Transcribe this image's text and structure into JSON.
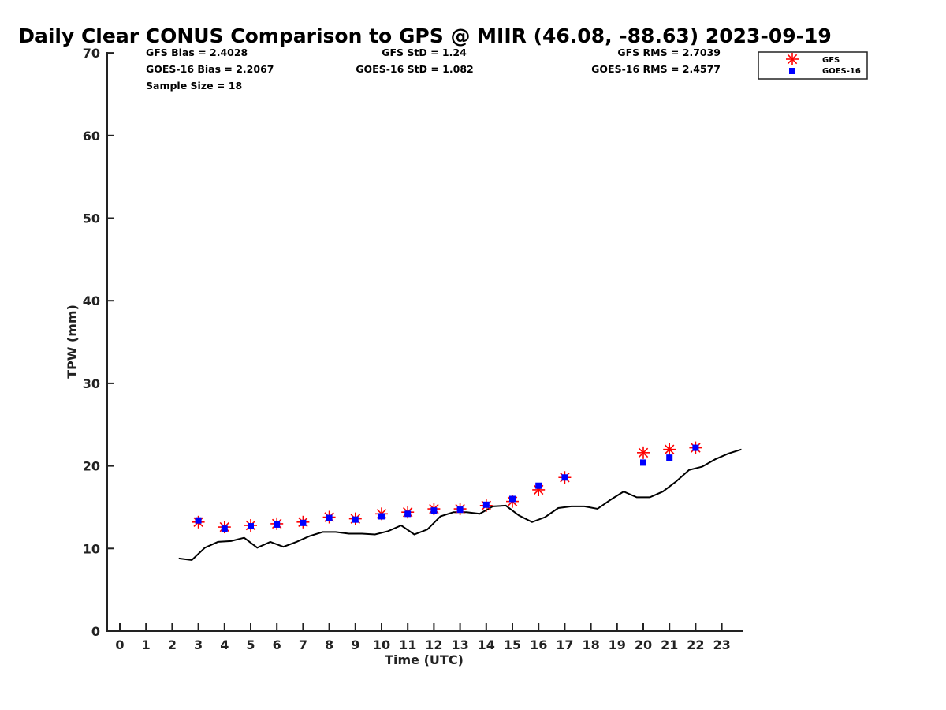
{
  "chart_data": {
    "type": "scatter",
    "title": "Daily Clear CONUS Comparison to GPS @ MIIR (46.08, -88.63) 2023-09-19",
    "xlabel": "Time (UTC)",
    "ylabel": "TPW (mm)",
    "xlim": [
      -0.5,
      23.75
    ],
    "ylim": [
      0,
      70
    ],
    "x_ticks": [
      0,
      1,
      2,
      3,
      4,
      5,
      6,
      7,
      8,
      9,
      10,
      11,
      12,
      13,
      14,
      15,
      16,
      17,
      18,
      19,
      20,
      21,
      22,
      23
    ],
    "y_ticks": [
      0,
      10,
      20,
      30,
      40,
      50,
      60,
      70
    ],
    "stats": {
      "gfs_bias": "GFS Bias = 2.4028",
      "goes_bias": "GOES-16 Bias = 2.2067",
      "sample_size": "Sample Size = 18",
      "gfs_std": "GFS StD = 1.24",
      "goes_std": "GOES-16 StD = 1.082",
      "gfs_rms": "GFS RMS = 2.7039",
      "goes_rms": "GOES-16 RMS = 2.4577"
    },
    "legend": {
      "location": "top-right",
      "entries": [
        "GFS",
        "GOES-16"
      ]
    },
    "series": [
      {
        "name": "GFS",
        "marker": "asterisk",
        "color": "#ff0000",
        "x": [
          3,
          4,
          5,
          6,
          7,
          8,
          9,
          10,
          11,
          12,
          13,
          14,
          15,
          16,
          17,
          20,
          21,
          22
        ],
        "values": [
          13.2,
          12.6,
          12.8,
          13.0,
          13.2,
          13.8,
          13.6,
          14.2,
          14.4,
          14.8,
          14.8,
          15.2,
          15.7,
          17.1,
          18.6,
          21.6,
          22.0,
          22.2
        ]
      },
      {
        "name": "GOES-16",
        "marker": "square",
        "color": "#0000ff",
        "x": [
          3,
          4,
          5,
          6,
          7,
          8,
          9,
          10,
          11,
          12,
          13,
          14,
          15,
          16,
          17,
          20,
          21,
          22
        ],
        "values": [
          13.4,
          12.4,
          12.7,
          12.9,
          13.1,
          13.7,
          13.5,
          13.9,
          14.2,
          14.6,
          14.7,
          15.3,
          16.0,
          17.6,
          18.6,
          20.4,
          21.0,
          22.2
        ]
      },
      {
        "name": "GPS",
        "marker": "line",
        "color": "#000000",
        "x": [
          2.25,
          2.75,
          3.25,
          3.75,
          4.25,
          4.75,
          5.25,
          5.75,
          6.25,
          6.75,
          7.25,
          7.75,
          8.25,
          8.75,
          9.25,
          9.75,
          10.25,
          10.75,
          11.25,
          11.75,
          12.25,
          12.75,
          13.25,
          13.75,
          14.25,
          14.75,
          15.25,
          15.75,
          16.25,
          16.75,
          17.25,
          17.75,
          18.25,
          18.75,
          19.25,
          19.75,
          20.25,
          20.75,
          21.25,
          21.75,
          22.25,
          22.75,
          23.25,
          23.75
        ],
        "values": [
          8.8,
          8.6,
          10.1,
          10.8,
          10.9,
          11.3,
          10.1,
          10.8,
          10.2,
          10.8,
          11.5,
          12.0,
          12.0,
          11.8,
          11.8,
          11.7,
          12.1,
          12.8,
          11.7,
          12.3,
          13.9,
          14.4,
          14.4,
          14.2,
          15.1,
          15.2,
          14.0,
          13.2,
          13.8,
          14.9,
          15.1,
          15.1,
          14.8,
          15.9,
          16.9,
          16.2,
          16.2,
          16.9,
          18.1,
          19.5,
          19.9,
          20.8,
          21.5,
          22.0
        ]
      }
    ]
  },
  "colors": {
    "gfs": "#ff0000",
    "goes": "#0000ff",
    "gps": "#000000",
    "axis": "#222222"
  }
}
